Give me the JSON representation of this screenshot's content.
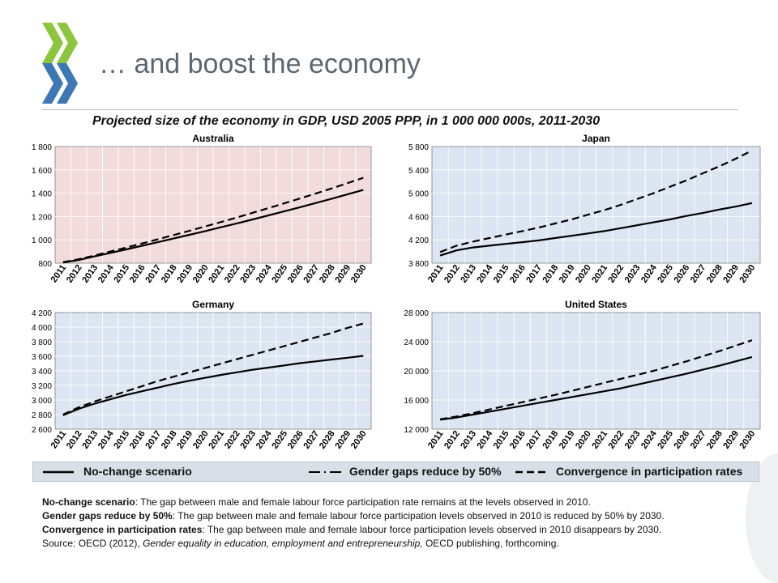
{
  "slide": {
    "title": "… and boost the economy",
    "chart_main_title": "Projected size of the economy in GDP, USD 2005 PPP, in 1 000 000 000s, 2011-2030"
  },
  "colors": {
    "logo_green": "#8cc63f",
    "logo_blue": "#3c78b4",
    "australia_bg": "#f2dcdb",
    "panel_bg": "#dce6f2",
    "legend_bg": "#d9dfe7"
  },
  "legend": {
    "items": [
      {
        "label": "No-change scenario",
        "style": "solid"
      },
      {
        "label": "Gender gaps reduce by 50%",
        "style": "long-dash"
      },
      {
        "label": "Convergence in participation rates",
        "style": "dash"
      }
    ]
  },
  "notes": {
    "no_change_term": "No-change scenario",
    "no_change_text": ": The gap between male and female labour force participation rate remains at the levels observed in 2010.",
    "gender_gaps_term": "Gender gaps reduce by 50%",
    "gender_gaps_text": ": The gap between male and female labour force participation levels observed in 2010 is reduced by 50% by 2030.",
    "convergence_term": "Convergence in participation rates",
    "convergence_text": ": The gap between male and female labour force participation levels observed in 2010 disappears by 2030.",
    "source_prefix": "Source: OECD (2012), ",
    "source_title": "Gender equality in education, employment and entrepreneurship,",
    "source_suffix": " OECD publishing, forthcoming."
  },
  "chart_data": [
    {
      "type": "line",
      "title": "Australia",
      "x": [
        "2011",
        "2012",
        "2013",
        "2014",
        "2015",
        "2016",
        "2017",
        "2018",
        "2019",
        "2020",
        "2021",
        "2022",
        "2023",
        "2024",
        "2025",
        "2026",
        "2027",
        "2028",
        "2029",
        "2030"
      ],
      "ylim": [
        800,
        1800
      ],
      "yticks": [
        800,
        1000,
        1200,
        1400,
        1600,
        1800
      ],
      "ytick_labels": [
        "800",
        "1 000",
        "1 200",
        "1 400",
        "1 600",
        "1 800"
      ],
      "background": "#f2dcdb",
      "series": [
        {
          "name": "No-change scenario",
          "style": "solid",
          "values": [
            805,
            828,
            858,
            888,
            918,
            949,
            980,
            1012,
            1043,
            1075,
            1108,
            1141,
            1175,
            1210,
            1245,
            1280,
            1316,
            1353,
            1391,
            1428
          ]
        },
        {
          "name": "Convergence in participation rates",
          "style": "dash",
          "values": [
            808,
            834,
            866,
            900,
            934,
            969,
            1005,
            1041,
            1078,
            1115,
            1153,
            1192,
            1232,
            1272,
            1313,
            1355,
            1398,
            1441,
            1486,
            1532
          ]
        }
      ]
    },
    {
      "type": "line",
      "title": "Japan",
      "x": [
        "2011",
        "2012",
        "2013",
        "2014",
        "2015",
        "2016",
        "2017",
        "2018",
        "2019",
        "2020",
        "2021",
        "2022",
        "2023",
        "2024",
        "2025",
        "2026",
        "2027",
        "2028",
        "2029",
        "2030"
      ],
      "ylim": [
        3800,
        5800
      ],
      "yticks": [
        3800,
        4200,
        4600,
        5000,
        5400,
        5800
      ],
      "ytick_labels": [
        "3 800",
        "4 200",
        "4 600",
        "5 000",
        "5 400",
        "5 800"
      ],
      "background": "#dce6f2",
      "series": [
        {
          "name": "No-change scenario",
          "style": "solid",
          "values": [
            3930,
            4020,
            4070,
            4100,
            4130,
            4160,
            4190,
            4230,
            4270,
            4310,
            4350,
            4400,
            4450,
            4500,
            4550,
            4610,
            4660,
            4720,
            4770,
            4830
          ]
        },
        {
          "name": "Convergence in participation rates",
          "style": "dash",
          "values": [
            3990,
            4100,
            4170,
            4230,
            4290,
            4350,
            4410,
            4480,
            4550,
            4630,
            4710,
            4800,
            4900,
            5000,
            5110,
            5220,
            5340,
            5460,
            5590,
            5730
          ]
        }
      ]
    },
    {
      "type": "line",
      "title": "Germany",
      "x": [
        "2011",
        "2012",
        "2013",
        "2014",
        "2015",
        "2016",
        "2017",
        "2018",
        "2019",
        "2020",
        "2021",
        "2022",
        "2023",
        "2024",
        "2025",
        "2026",
        "2027",
        "2028",
        "2029",
        "2030"
      ],
      "ylim": [
        2600,
        4200
      ],
      "yticks": [
        2600,
        2800,
        3000,
        3200,
        3400,
        3600,
        3800,
        4000,
        4200
      ],
      "ytick_labels": [
        "2 600",
        "2 800",
        "3 000",
        "3 200",
        "3 400",
        "3 600",
        "3 800",
        "4 000",
        "4 200"
      ],
      "background": "#dce6f2",
      "series": [
        {
          "name": "No-change scenario",
          "style": "solid",
          "values": [
            2790,
            2880,
            2950,
            3010,
            3070,
            3120,
            3170,
            3220,
            3265,
            3305,
            3345,
            3380,
            3415,
            3445,
            3475,
            3505,
            3530,
            3555,
            3580,
            3605
          ]
        },
        {
          "name": "Convergence in participation rates",
          "style": "dash",
          "values": [
            2800,
            2900,
            2980,
            3050,
            3120,
            3190,
            3260,
            3320,
            3380,
            3440,
            3500,
            3560,
            3620,
            3680,
            3740,
            3800,
            3860,
            3920,
            3990,
            4050
          ]
        }
      ]
    },
    {
      "type": "line",
      "title": "United States",
      "x": [
        "2011",
        "2012",
        "2013",
        "2014",
        "2015",
        "2016",
        "2017",
        "2018",
        "2019",
        "2020",
        "2021",
        "2022",
        "2023",
        "2024",
        "2025",
        "2026",
        "2027",
        "2028",
        "2029",
        "2030"
      ],
      "ylim": [
        12000,
        28000
      ],
      "yticks": [
        12000,
        16000,
        20000,
        24000,
        28000
      ],
      "ytick_labels": [
        "12 000",
        "16 000",
        "20 000",
        "24 000",
        "28 000"
      ],
      "background": "#dce6f2",
      "series": [
        {
          "name": "No-change scenario",
          "style": "solid",
          "values": [
            13300,
            13600,
            14000,
            14400,
            14800,
            15200,
            15600,
            16000,
            16400,
            16800,
            17200,
            17600,
            18100,
            18600,
            19100,
            19600,
            20150,
            20700,
            21300,
            21900
          ]
        },
        {
          "name": "Convergence in participation rates",
          "style": "dash",
          "values": [
            13350,
            13750,
            14200,
            14700,
            15200,
            15700,
            16200,
            16700,
            17250,
            17800,
            18350,
            18900,
            19450,
            20000,
            20650,
            21300,
            22000,
            22700,
            23450,
            24200
          ]
        }
      ]
    }
  ]
}
